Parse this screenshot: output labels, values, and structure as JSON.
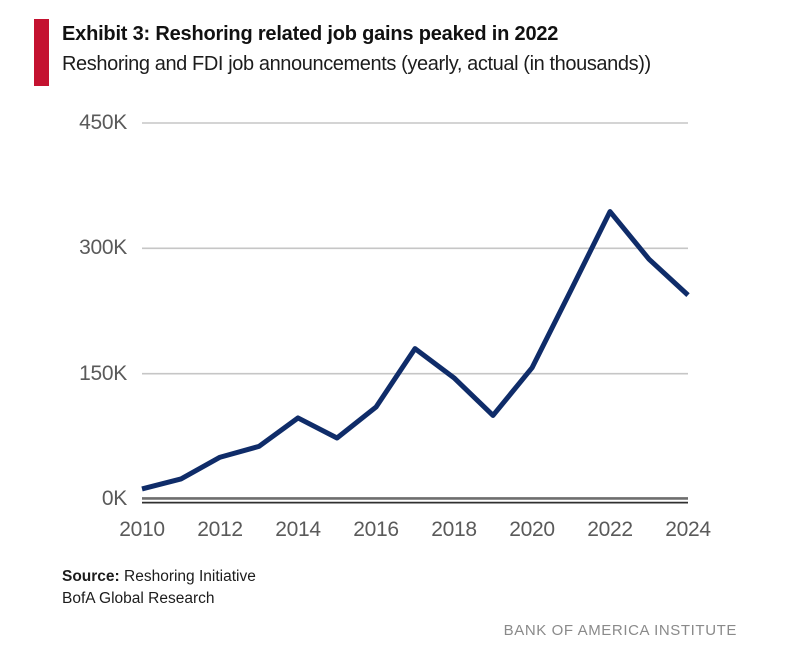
{
  "header": {
    "title": "Exhibit 3: Reshoring related job gains peaked in 2022",
    "subtitle": "Reshoring and FDI job announcements (yearly, actual (in thousands))"
  },
  "chart_data": {
    "type": "line",
    "title": "Reshoring and FDI job announcements (yearly, actual (in thousands))",
    "x": [
      2010,
      2011,
      2012,
      2013,
      2014,
      2015,
      2016,
      2017,
      2018,
      2019,
      2020,
      2021,
      2022,
      2023,
      2024
    ],
    "series": [
      {
        "name": "Reshoring and FDI job announcements (thousands)",
        "values": [
          12,
          24,
          50,
          63,
          97,
          73,
          110,
          180,
          145,
          100,
          157,
          250,
          344,
          287,
          244
        ]
      }
    ],
    "unit": "K (thousands)",
    "ylim": [
      0,
      450
    ],
    "yticks": [
      {
        "label": "450K",
        "value": 450
      },
      {
        "label": "300K",
        "value": 300
      },
      {
        "label": "150K",
        "value": 150
      },
      {
        "label": "0K",
        "value": 0
      }
    ],
    "xticks": [
      2010,
      2012,
      2014,
      2016,
      2018,
      2020,
      2022,
      2024
    ],
    "grid": "horizontal",
    "legend": "none"
  },
  "footer": {
    "source_label": "Source:",
    "source_value": " Reshoring Initiative",
    "source_line2": "BofA Global Research",
    "brand": "BANK OF AMERICA INSTITUTE"
  },
  "colors": {
    "accent_red": "#c41230",
    "line_navy": "#0f2c69",
    "grid_gray": "#c6c6c6",
    "axis_dark_top": "#6e6e6e",
    "axis_dark_bottom": "#303030",
    "tick_gray": "#5a5a5a",
    "brand_gray": "#8a8a8a"
  }
}
